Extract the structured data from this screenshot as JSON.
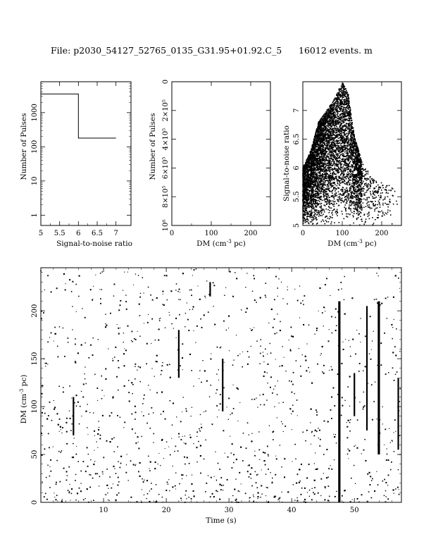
{
  "header": {
    "file_text": "File: p2030_54127_52765_0135_G31.95+01.92.C_5",
    "events_text": "16012 events. m"
  },
  "chart_data": [
    {
      "type": "line",
      "xlabel": "Signal-to-noise ratio",
      "ylabel": "Number of Pulses",
      "xlim": [
        5,
        7.4
      ],
      "ylim": [
        0.5,
        8000
      ],
      "yscale": "log",
      "xticks": [
        5,
        5.5,
        6,
        6.5,
        7
      ],
      "xtick_labels": [
        "5",
        "5.5",
        "6",
        "6.5",
        "7"
      ],
      "yticks": [
        1,
        10,
        100,
        1000
      ],
      "ytick_labels": [
        "1",
        "10",
        "100",
        "1000"
      ],
      "steps": [
        {
          "x0": 5.0,
          "x1": 6.0,
          "y": 3500
        },
        {
          "x0": 6.0,
          "x1": 7.0,
          "y": 180
        }
      ]
    },
    {
      "type": "bar",
      "xlabel": "DM (cm^-3 pc)",
      "ylabel": "Number of Pulses",
      "xlim": [
        0,
        250
      ],
      "ylim": [
        0,
        1000000
      ],
      "yinverted": true,
      "xticks": [
        0,
        100,
        200
      ],
      "xtick_labels": [
        "0",
        "100",
        "200"
      ],
      "yticks": [
        0,
        200000,
        400000,
        600000,
        800000,
        1000000
      ],
      "ytick_labels": [
        "0",
        "2×10⁵",
        "4×10⁵",
        "6×10⁵",
        "8×10⁵",
        "10⁶"
      ],
      "values": []
    },
    {
      "type": "scatter",
      "xlabel": "DM (cm^-3 pc)",
      "ylabel": "Signal-to-noise ratio",
      "xlim": [
        0,
        250
      ],
      "ylim": [
        5,
        7.5
      ],
      "xticks": [
        0,
        100,
        200
      ],
      "xtick_labels": [
        "0",
        "100",
        "200"
      ],
      "yticks": [
        5,
        5.5,
        6,
        6.5,
        7
      ],
      "ytick_labels": [
        "5",
        "5.5",
        "6",
        "6.5",
        "7"
      ],
      "envelope": [
        [
          0,
          6.0
        ],
        [
          20,
          6.3
        ],
        [
          40,
          6.8
        ],
        [
          60,
          7.0
        ],
        [
          80,
          7.2
        ],
        [
          100,
          7.5
        ],
        [
          115,
          7.3
        ],
        [
          130,
          6.6
        ],
        [
          150,
          6.1
        ],
        [
          180,
          5.8
        ],
        [
          220,
          5.7
        ],
        [
          250,
          5.5
        ]
      ],
      "points": 16012
    },
    {
      "type": "scatter",
      "xlabel": "Time (s)",
      "ylabel": "DM (cm^-3 pc)",
      "xlim": [
        0,
        57.5
      ],
      "ylim": [
        0,
        245
      ],
      "xticks": [
        10,
        20,
        30,
        40,
        50
      ],
      "xtick_labels": [
        "10",
        "20",
        "30",
        "40",
        "50"
      ],
      "yticks": [
        0,
        50,
        100,
        150,
        200
      ],
      "ytick_labels": [
        "0",
        "50",
        "100",
        "150",
        "200"
      ],
      "vertical_streaks": [
        {
          "t": 5.2,
          "dm0": 70,
          "dm1": 110
        },
        {
          "t": 22.0,
          "dm0": 130,
          "dm1": 180
        },
        {
          "t": 27.0,
          "dm0": 215,
          "dm1": 230
        },
        {
          "t": 29.0,
          "dm0": 95,
          "dm1": 150
        },
        {
          "t": 47.6,
          "dm0": 0,
          "dm1": 210
        },
        {
          "t": 50.0,
          "dm0": 90,
          "dm1": 135
        },
        {
          "t": 52.0,
          "dm0": 75,
          "dm1": 205
        },
        {
          "t": 53.9,
          "dm0": 50,
          "dm1": 210
        },
        {
          "t": 57.0,
          "dm0": 55,
          "dm1": 130
        }
      ],
      "points": 1200
    }
  ]
}
